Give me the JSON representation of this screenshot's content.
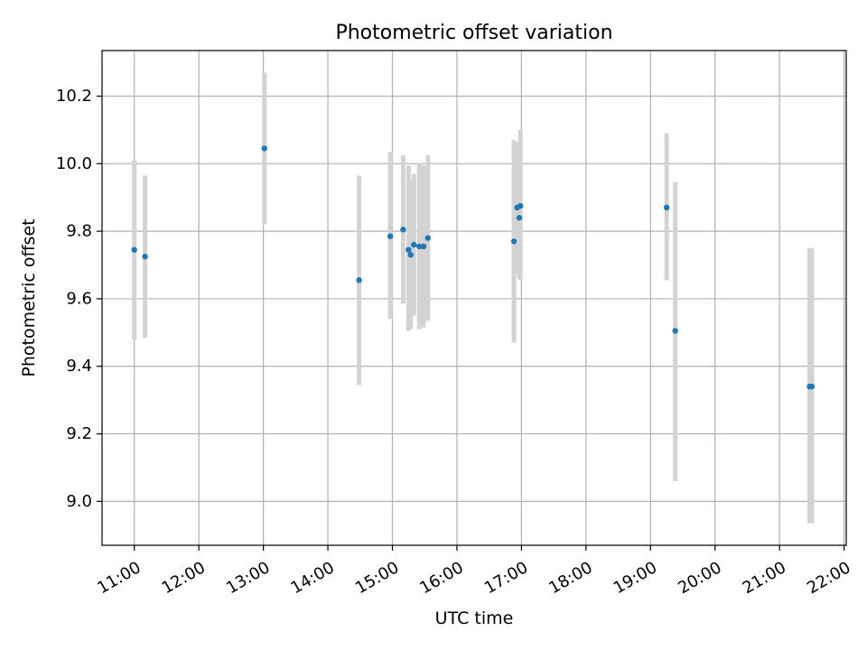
{
  "chart_data": {
    "type": "scatter",
    "title": "Photometric offset variation",
    "xlabel": "UTC time",
    "ylabel": "Photometric offset",
    "xlim": [
      "10:30",
      "22:02"
    ],
    "ylim": [
      8.87,
      10.335
    ],
    "x_ticks": [
      "11:00",
      "12:00",
      "13:00",
      "14:00",
      "15:00",
      "16:00",
      "17:00",
      "18:00",
      "19:00",
      "20:00",
      "21:00",
      "22:00"
    ],
    "y_ticks": [
      "9.0",
      "9.2",
      "9.4",
      "9.6",
      "9.8",
      "10.0",
      "10.2"
    ],
    "grid": true,
    "error_bars": true,
    "colors": {
      "point": "#1f77b4",
      "error_bar": "#d3d3d3",
      "grid": "#b0b0b0"
    },
    "points": [
      {
        "x": "11:00",
        "y": 9.745,
        "lo": 9.48,
        "hi": 10.01
      },
      {
        "x": "11:10",
        "y": 9.725,
        "lo": 9.485,
        "hi": 9.965
      },
      {
        "x": "13:01",
        "y": 10.045,
        "lo": 9.82,
        "hi": 10.27
      },
      {
        "x": "14:29",
        "y": 9.655,
        "lo": 9.345,
        "hi": 9.965
      },
      {
        "x": "14:58",
        "y": 9.785,
        "lo": 9.54,
        "hi": 10.035
      },
      {
        "x": "15:10",
        "y": 9.805,
        "lo": 9.585,
        "hi": 10.025
      },
      {
        "x": "15:15",
        "y": 9.745,
        "lo": 9.505,
        "hi": 9.995
      },
      {
        "x": "15:17",
        "y": 9.73,
        "lo": 9.51,
        "hi": 9.95
      },
      {
        "x": "15:20",
        "y": 9.76,
        "lo": 9.55,
        "hi": 9.97
      },
      {
        "x": "15:25",
        "y": 9.755,
        "lo": 9.51,
        "hi": 10.0
      },
      {
        "x": "15:29",
        "y": 9.755,
        "lo": 9.515,
        "hi": 9.995
      },
      {
        "x": "15:33",
        "y": 9.78,
        "lo": 9.535,
        "hi": 10.025
      },
      {
        "x": "16:53",
        "y": 9.77,
        "lo": 9.47,
        "hi": 10.07
      },
      {
        "x": "16:56",
        "y": 9.87,
        "lo": 9.675,
        "hi": 10.065
      },
      {
        "x": "16:58",
        "y": 9.84,
        "lo": 9.66,
        "hi": 10.02
      },
      {
        "x": "16:59",
        "y": 9.875,
        "lo": 9.655,
        "hi": 10.1
      },
      {
        "x": "19:15",
        "y": 9.87,
        "lo": 9.655,
        "hi": 10.09
      },
      {
        "x": "19:23",
        "y": 9.505,
        "lo": 9.06,
        "hi": 9.945
      },
      {
        "x": "21:28",
        "y": 9.34,
        "lo": 8.935,
        "hi": 9.75
      },
      {
        "x": "21:30",
        "y": 9.34,
        "lo": 8.935,
        "hi": 9.75
      }
    ]
  }
}
